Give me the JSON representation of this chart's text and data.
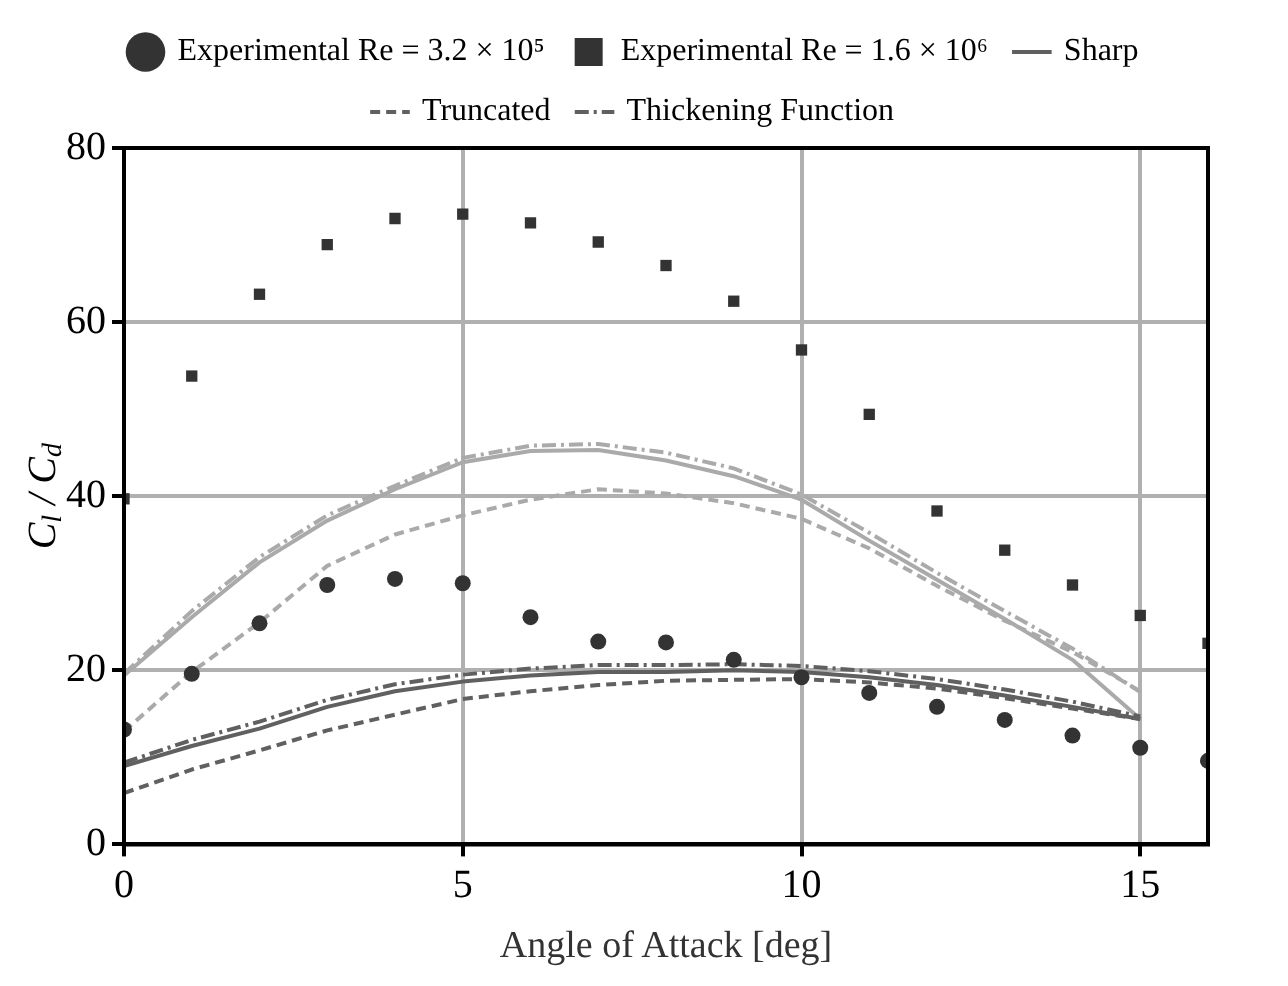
{
  "chart_data": {
    "type": "line",
    "xlabel": "Angle of Attack [deg]",
    "ylabel": "C$_{l}$ / C$_{d}$",
    "xlim": [
      0,
      16
    ],
    "xticks": [
      0,
      5,
      10,
      15
    ],
    "ylim": [
      0,
      80
    ],
    "yticks": [
      0,
      20,
      40,
      60,
      80
    ],
    "grid": true,
    "legend": "top",
    "series": [
      {
        "name": "Experimental Re = 3.2 × 10⁵",
        "type": "scatter",
        "marker": "circle",
        "color": "#333333",
        "x": [
          0,
          1,
          2,
          3,
          4,
          5,
          6,
          7,
          8,
          9,
          10,
          11,
          12,
          13,
          14,
          15,
          16
        ],
        "values": [
          13.2,
          19.6,
          25.4,
          29.8,
          30.5,
          30.0,
          26.1,
          23.3,
          23.2,
          21.2,
          19.2,
          17.4,
          15.8,
          14.3,
          12.5,
          11.1,
          9.6
        ]
      },
      {
        "name": "Experimental Re = 1.6 × 10⁶",
        "type": "scatter",
        "marker": "square",
        "color": "#333333",
        "x": [
          0,
          1,
          2,
          3,
          4,
          5,
          6,
          7,
          8,
          9,
          10,
          11,
          12,
          13,
          14,
          15,
          16
        ],
        "values": [
          39.7,
          53.8,
          63.2,
          68.9,
          71.9,
          72.4,
          71.4,
          69.2,
          66.5,
          62.4,
          56.8,
          49.4,
          38.3,
          33.8,
          29.8,
          26.3,
          23.1
        ]
      },
      {
        "name": "Sharp",
        "line_style": "solid",
        "color": "#606060",
        "x": [
          0,
          1,
          2,
          3,
          4,
          5,
          6,
          7,
          8,
          9,
          10,
          11,
          12,
          13,
          14,
          15
        ],
        "values": [
          9.0,
          11.3,
          13.3,
          15.8,
          17.6,
          18.7,
          19.4,
          19.8,
          19.8,
          20.0,
          19.8,
          19.2,
          18.3,
          17.1,
          15.8,
          14.4
        ]
      },
      {
        "name": "Truncated",
        "line_style": "dashed",
        "color": "#606060",
        "x": [
          0,
          1,
          2,
          3,
          4,
          5,
          6,
          7,
          8,
          9,
          10,
          11,
          12,
          13,
          14,
          15
        ],
        "values": [
          5.9,
          8.6,
          10.8,
          13.1,
          14.9,
          16.7,
          17.6,
          18.3,
          18.8,
          18.9,
          19.0,
          18.6,
          17.9,
          16.8,
          15.6,
          14.4
        ]
      },
      {
        "name": "Thickening Function",
        "line_style": "dashdot",
        "color": "#606060",
        "x": [
          0,
          1,
          2,
          3,
          4,
          5,
          6,
          7,
          8,
          9,
          10,
          11,
          12,
          13,
          14,
          15
        ],
        "values": [
          9.4,
          12.0,
          14.1,
          16.6,
          18.4,
          19.5,
          20.2,
          20.6,
          20.6,
          20.7,
          20.5,
          19.9,
          19.0,
          17.8,
          16.4,
          14.7
        ]
      },
      {
        "line_style": "solid",
        "color": "#aaaaaa",
        "x": [
          0,
          1,
          2,
          3,
          4,
          5,
          6,
          7,
          8,
          9,
          10,
          11,
          12,
          13,
          14,
          15
        ],
        "values": [
          19.4,
          26.1,
          32.4,
          37.2,
          40.8,
          43.9,
          45.2,
          45.3,
          44.1,
          42.3,
          39.6,
          34.9,
          30.4,
          25.9,
          21.2,
          14.4
        ]
      },
      {
        "line_style": "dashed",
        "color": "#aaaaaa",
        "x": [
          0,
          1,
          2,
          3,
          4,
          5,
          6,
          7,
          8,
          9,
          10,
          11,
          12,
          13,
          14,
          15
        ],
        "values": [
          13.0,
          19.8,
          25.5,
          32.0,
          35.6,
          37.8,
          39.6,
          40.8,
          40.3,
          39.2,
          37.4,
          34.0,
          29.7,
          25.7,
          22.1,
          17.6
        ]
      },
      {
        "line_style": "dashdot",
        "color": "#aaaaaa",
        "x": [
          0,
          1,
          2,
          3,
          4,
          5,
          6,
          7,
          8,
          9,
          10,
          11,
          12,
          13,
          14,
          15
        ],
        "values": [
          19.6,
          26.8,
          33.0,
          37.8,
          41.2,
          44.4,
          45.8,
          46.0,
          45.0,
          43.2,
          40.2,
          35.8,
          31.2,
          26.8,
          22.5,
          17.5
        ]
      }
    ]
  }
}
